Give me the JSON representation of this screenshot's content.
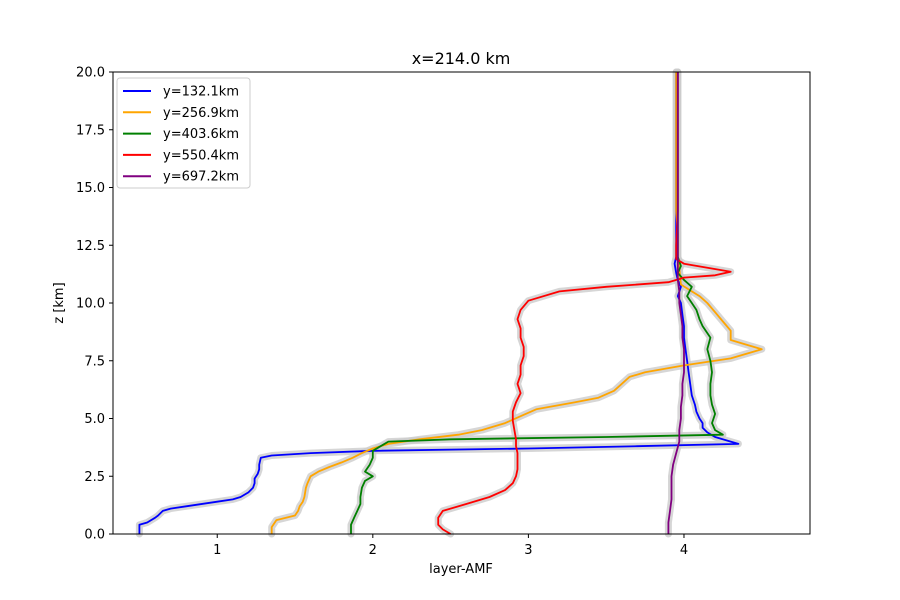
{
  "chart_data": {
    "type": "line",
    "title": "x=214.0 km",
    "xlabel": "layer-AMF",
    "ylabel": "z [km]",
    "xlim": [
      0.33,
      4.81
    ],
    "ylim": [
      0,
      20
    ],
    "xticks": [
      1,
      2,
      3,
      4
    ],
    "xtick_labels": [
      "1",
      "2",
      "3",
      "4"
    ],
    "yticks": [
      0.0,
      2.5,
      5.0,
      7.5,
      10.0,
      12.5,
      15.0,
      17.5,
      20.0
    ],
    "ytick_labels": [
      "0.0",
      "2.5",
      "5.0",
      "7.5",
      "10.0",
      "12.5",
      "15.0",
      "17.5",
      "20.0"
    ],
    "grid": false,
    "legend_position": "top-left",
    "uncertainty_band_color": "#cccccc",
    "series": [
      {
        "name": "y=132.1km",
        "color": "#0000ff",
        "points": [
          [
            0.5,
            0
          ],
          [
            0.5,
            0.4
          ],
          [
            0.55,
            0.5
          ],
          [
            0.6,
            0.7
          ],
          [
            0.62,
            0.8
          ],
          [
            0.65,
            1.0
          ],
          [
            0.7,
            1.1
          ],
          [
            0.8,
            1.2
          ],
          [
            1.0,
            1.4
          ],
          [
            1.1,
            1.5
          ],
          [
            1.15,
            1.6
          ],
          [
            1.2,
            1.8
          ],
          [
            1.23,
            2.0
          ],
          [
            1.24,
            2.2
          ],
          [
            1.24,
            2.4
          ],
          [
            1.26,
            2.6
          ],
          [
            1.27,
            2.8
          ],
          [
            1.27,
            3.0
          ],
          [
            1.28,
            3.3
          ],
          [
            1.35,
            3.4
          ],
          [
            1.6,
            3.5
          ],
          [
            2.0,
            3.6
          ],
          [
            3.0,
            3.7
          ],
          [
            3.7,
            3.8
          ],
          [
            4.35,
            3.9
          ],
          [
            4.3,
            4.0
          ],
          [
            4.2,
            4.2
          ],
          [
            4.15,
            4.4
          ],
          [
            4.12,
            4.6
          ],
          [
            4.12,
            4.8
          ],
          [
            4.1,
            5.0
          ],
          [
            4.08,
            5.3
          ],
          [
            4.07,
            5.6
          ],
          [
            4.05,
            6.0
          ],
          [
            4.04,
            6.5
          ],
          [
            4.03,
            7.0
          ],
          [
            4.02,
            7.5
          ],
          [
            4.01,
            8.0
          ],
          [
            4.0,
            8.5
          ],
          [
            4.0,
            9.0
          ],
          [
            3.99,
            9.5
          ],
          [
            3.98,
            10.0
          ],
          [
            3.96,
            10.3
          ],
          [
            3.98,
            10.7
          ],
          [
            3.96,
            11.0
          ],
          [
            3.95,
            11.3
          ],
          [
            3.94,
            11.7
          ],
          [
            3.95,
            12.0
          ],
          [
            3.95,
            12.5
          ],
          [
            3.95,
            13.0
          ],
          [
            3.95,
            14.0
          ],
          [
            3.95,
            15.0
          ],
          [
            3.95,
            16.0
          ],
          [
            3.95,
            17.0
          ],
          [
            3.95,
            18.0
          ],
          [
            3.95,
            19.0
          ],
          [
            3.95,
            20.0
          ]
        ]
      },
      {
        "name": "y=256.9km",
        "color": "#ffa500",
        "points": [
          [
            1.35,
            0
          ],
          [
            1.35,
            0.3
          ],
          [
            1.38,
            0.6
          ],
          [
            1.5,
            0.8
          ],
          [
            1.52,
            1.0
          ],
          [
            1.53,
            1.2
          ],
          [
            1.55,
            1.4
          ],
          [
            1.56,
            1.6
          ],
          [
            1.57,
            2.0
          ],
          [
            1.58,
            2.2
          ],
          [
            1.6,
            2.5
          ],
          [
            1.65,
            2.7
          ],
          [
            1.72,
            2.9
          ],
          [
            1.8,
            3.1
          ],
          [
            1.87,
            3.3
          ],
          [
            1.93,
            3.5
          ],
          [
            2.0,
            3.7
          ],
          [
            2.1,
            3.9
          ],
          [
            2.3,
            4.1
          ],
          [
            2.55,
            4.3
          ],
          [
            2.7,
            4.5
          ],
          [
            2.85,
            4.8
          ],
          [
            2.95,
            5.1
          ],
          [
            3.05,
            5.4
          ],
          [
            3.3,
            5.7
          ],
          [
            3.45,
            5.9
          ],
          [
            3.55,
            6.2
          ],
          [
            3.6,
            6.5
          ],
          [
            3.65,
            6.8
          ],
          [
            3.75,
            7.0
          ],
          [
            4.0,
            7.3
          ],
          [
            4.3,
            7.6
          ],
          [
            4.5,
            8.0
          ],
          [
            4.4,
            8.2
          ],
          [
            4.3,
            8.4
          ],
          [
            4.3,
            8.8
          ],
          [
            4.25,
            9.2
          ],
          [
            4.2,
            9.6
          ],
          [
            4.15,
            10.0
          ],
          [
            4.1,
            10.3
          ],
          [
            4.05,
            10.5
          ],
          [
            3.98,
            10.8
          ],
          [
            3.97,
            11.5
          ],
          [
            3.96,
            12.0
          ],
          [
            3.96,
            13.0
          ],
          [
            3.95,
            14.0
          ],
          [
            3.95,
            16.0
          ],
          [
            3.95,
            18.0
          ],
          [
            3.95,
            20.0
          ]
        ]
      },
      {
        "name": "y=403.6km",
        "color": "#008000",
        "points": [
          [
            1.86,
            0
          ],
          [
            1.86,
            0.4
          ],
          [
            1.88,
            0.7
          ],
          [
            1.9,
            1.0
          ],
          [
            1.92,
            1.3
          ],
          [
            1.92,
            1.6
          ],
          [
            1.93,
            2.0
          ],
          [
            1.95,
            2.3
          ],
          [
            2.0,
            2.5
          ],
          [
            1.95,
            2.7
          ],
          [
            1.98,
            3.0
          ],
          [
            2.0,
            3.3
          ],
          [
            2.0,
            3.6
          ],
          [
            2.05,
            3.8
          ],
          [
            2.1,
            4.0
          ],
          [
            2.5,
            4.1
          ],
          [
            3.5,
            4.2
          ],
          [
            4.25,
            4.3
          ],
          [
            4.2,
            4.5
          ],
          [
            4.18,
            4.8
          ],
          [
            4.2,
            5.2
          ],
          [
            4.18,
            5.6
          ],
          [
            4.17,
            6.0
          ],
          [
            4.17,
            6.5
          ],
          [
            4.18,
            7.0
          ],
          [
            4.17,
            7.5
          ],
          [
            4.15,
            8.0
          ],
          [
            4.17,
            8.5
          ],
          [
            4.12,
            9.0
          ],
          [
            4.1,
            9.3
          ],
          [
            4.08,
            9.7
          ],
          [
            4.05,
            10.0
          ],
          [
            4.02,
            10.3
          ],
          [
            4.05,
            10.7
          ],
          [
            4.0,
            11.0
          ],
          [
            3.96,
            11.3
          ],
          [
            3.98,
            11.6
          ],
          [
            3.96,
            12.0
          ],
          [
            3.96,
            13.0
          ],
          [
            3.96,
            15.0
          ],
          [
            3.96,
            17.0
          ],
          [
            3.96,
            20.0
          ]
        ]
      },
      {
        "name": "y=550.4km",
        "color": "#ff0000",
        "points": [
          [
            2.5,
            0
          ],
          [
            2.45,
            0.2
          ],
          [
            2.42,
            0.4
          ],
          [
            2.42,
            0.7
          ],
          [
            2.45,
            1.0
          ],
          [
            2.6,
            1.3
          ],
          [
            2.75,
            1.6
          ],
          [
            2.85,
            1.9
          ],
          [
            2.9,
            2.2
          ],
          [
            2.92,
            2.5
          ],
          [
            2.93,
            2.8
          ],
          [
            2.93,
            3.1
          ],
          [
            2.93,
            3.5
          ],
          [
            2.92,
            3.8
          ],
          [
            2.92,
            4.1
          ],
          [
            2.91,
            4.5
          ],
          [
            2.9,
            4.9
          ],
          [
            2.9,
            5.3
          ],
          [
            2.92,
            5.7
          ],
          [
            2.95,
            6.1
          ],
          [
            2.93,
            6.5
          ],
          [
            2.95,
            6.9
          ],
          [
            2.95,
            7.3
          ],
          [
            2.97,
            7.7
          ],
          [
            2.97,
            8.1
          ],
          [
            2.95,
            8.5
          ],
          [
            2.95,
            8.9
          ],
          [
            2.93,
            9.3
          ],
          [
            2.95,
            9.7
          ],
          [
            3.0,
            10.1
          ],
          [
            3.2,
            10.5
          ],
          [
            3.5,
            10.7
          ],
          [
            3.9,
            10.9
          ],
          [
            4.0,
            11.1
          ],
          [
            4.2,
            11.2
          ],
          [
            4.3,
            11.35
          ],
          [
            4.0,
            11.7
          ],
          [
            3.95,
            11.9
          ],
          [
            3.95,
            12.5
          ],
          [
            3.96,
            14.0
          ],
          [
            3.96,
            16.0
          ],
          [
            3.96,
            18.0
          ],
          [
            3.96,
            20.0
          ]
        ]
      },
      {
        "name": "y=697.2km",
        "color": "#800080",
        "points": [
          [
            3.9,
            0
          ],
          [
            3.9,
            0.5
          ],
          [
            3.91,
            1.0
          ],
          [
            3.92,
            1.5
          ],
          [
            3.92,
            2.0
          ],
          [
            3.92,
            2.5
          ],
          [
            3.93,
            3.0
          ],
          [
            3.95,
            3.5
          ],
          [
            3.97,
            4.0
          ],
          [
            3.97,
            4.5
          ],
          [
            3.98,
            5.0
          ],
          [
            3.98,
            5.5
          ],
          [
            3.99,
            6.0
          ],
          [
            3.99,
            6.5
          ],
          [
            4.0,
            7.0
          ],
          [
            4.0,
            7.5
          ],
          [
            4.0,
            8.0
          ],
          [
            3.99,
            8.5
          ],
          [
            3.99,
            9.0
          ],
          [
            3.98,
            9.5
          ],
          [
            3.97,
            10.0
          ],
          [
            3.97,
            10.5
          ],
          [
            3.96,
            11.0
          ],
          [
            3.96,
            12.0
          ],
          [
            3.96,
            13.0
          ],
          [
            3.96,
            14.0
          ],
          [
            3.96,
            15.0
          ],
          [
            3.96,
            16.0
          ],
          [
            3.96,
            17.0
          ],
          [
            3.96,
            18.0
          ],
          [
            3.96,
            19.0
          ],
          [
            3.96,
            20.0
          ]
        ]
      }
    ]
  }
}
